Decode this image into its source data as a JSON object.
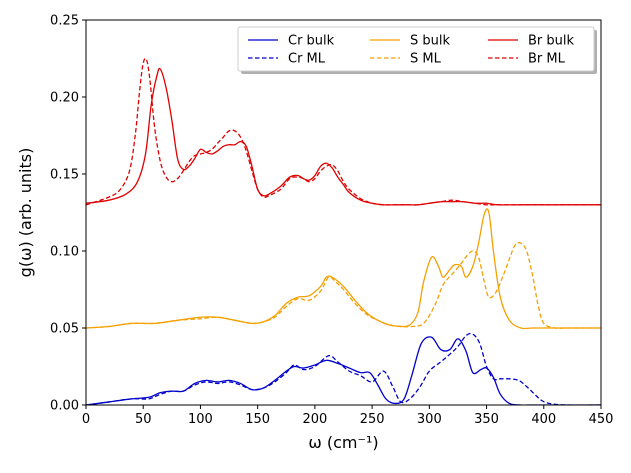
{
  "chart_data": {
    "type": "line",
    "title": "",
    "xlabel": "ω (cm⁻¹)",
    "ylabel": "g(ω) (arb. units)",
    "xlim": [
      0,
      450
    ],
    "ylim": [
      0,
      0.25
    ],
    "grid": false,
    "legend_position": "top-right",
    "x_ticks": [
      0,
      50,
      100,
      150,
      200,
      250,
      300,
      350,
      400,
      450
    ],
    "x_tick_labels": [
      "0",
      "50",
      "100",
      "150",
      "200",
      "250",
      "300",
      "350",
      "400",
      "450"
    ],
    "y_ticks": [
      0,
      0.05,
      0.1,
      0.15,
      0.2,
      0.25
    ],
    "y_tick_labels": [
      "0.00",
      "0.05",
      "0.10",
      "0.15",
      "0.20",
      "0.25"
    ],
    "series": [
      {
        "name": "Cr bulk",
        "color": "#0000cc",
        "style": "solid",
        "x": [
          0,
          20,
          40,
          55,
          65,
          75,
          85,
          95,
          105,
          115,
          125,
          135,
          145,
          155,
          165,
          175,
          182,
          190,
          200,
          210,
          220,
          230,
          240,
          248,
          255,
          262,
          270,
          278,
          285,
          293,
          302,
          310,
          318,
          325,
          332,
          338,
          345,
          350,
          356,
          362,
          370,
          380,
          390,
          400,
          420,
          450
        ],
        "y": [
          0,
          0.002,
          0.004,
          0.005,
          0.008,
          0.009,
          0.009,
          0.014,
          0.016,
          0.015,
          0.016,
          0.014,
          0.01,
          0.011,
          0.016,
          0.022,
          0.025,
          0.024,
          0.026,
          0.029,
          0.027,
          0.024,
          0.021,
          0.021,
          0.013,
          0.004,
          0.001,
          0.004,
          0.02,
          0.04,
          0.044,
          0.036,
          0.036,
          0.043,
          0.035,
          0.021,
          0.023,
          0.024,
          0.018,
          0.007,
          0.001,
          0,
          0,
          0,
          0,
          0
        ]
      },
      {
        "name": "Cr ML",
        "color": "#0000cc",
        "style": "dashed",
        "x": [
          0,
          20,
          40,
          55,
          65,
          75,
          85,
          95,
          105,
          115,
          125,
          135,
          145,
          155,
          165,
          175,
          182,
          190,
          200,
          212,
          220,
          230,
          240,
          250,
          260,
          268,
          275,
          283,
          292,
          300,
          310,
          318,
          325,
          332,
          338,
          344,
          350,
          356,
          362,
          370,
          378,
          385,
          392,
          398,
          405,
          420,
          450
        ],
        "y": [
          0,
          0.002,
          0.004,
          0.004,
          0.007,
          0.009,
          0.009,
          0.013,
          0.015,
          0.014,
          0.015,
          0.013,
          0.01,
          0.011,
          0.015,
          0.021,
          0.026,
          0.023,
          0.025,
          0.032,
          0.028,
          0.022,
          0.019,
          0.015,
          0.022,
          0.012,
          0.002,
          0.004,
          0.012,
          0.022,
          0.028,
          0.033,
          0.038,
          0.045,
          0.046,
          0.04,
          0.025,
          0.017,
          0.017,
          0.017,
          0.016,
          0.012,
          0.007,
          0.003,
          0.001,
          0,
          0
        ]
      },
      {
        "name": "S bulk",
        "color": "#f5a000",
        "style": "solid",
        "x": [
          0,
          20,
          40,
          60,
          80,
          100,
          115,
          130,
          145,
          155,
          165,
          175,
          185,
          195,
          205,
          210,
          215,
          225,
          235,
          245,
          255,
          265,
          275,
          283,
          290,
          295,
          302,
          308,
          312,
          318,
          322,
          328,
          332,
          338,
          343,
          348,
          352,
          356,
          362,
          370,
          380,
          390,
          400,
          420,
          450
        ],
        "y": [
          0.05,
          0.051,
          0.053,
          0.053,
          0.055,
          0.057,
          0.057,
          0.055,
          0.053,
          0.054,
          0.058,
          0.066,
          0.07,
          0.071,
          0.077,
          0.083,
          0.083,
          0.077,
          0.068,
          0.06,
          0.055,
          0.052,
          0.051,
          0.052,
          0.06,
          0.08,
          0.096,
          0.09,
          0.083,
          0.088,
          0.091,
          0.09,
          0.083,
          0.09,
          0.105,
          0.124,
          0.125,
          0.1,
          0.07,
          0.055,
          0.05,
          0.05,
          0.05,
          0.05,
          0.05
        ]
      },
      {
        "name": "S ML",
        "color": "#f5a000",
        "style": "dashed",
        "x": [
          0,
          20,
          40,
          60,
          80,
          100,
          115,
          130,
          145,
          155,
          165,
          175,
          185,
          195,
          205,
          212,
          218,
          225,
          235,
          245,
          255,
          265,
          275,
          285,
          295,
          305,
          312,
          320,
          328,
          333,
          338,
          343,
          348,
          352,
          358,
          364,
          370,
          375,
          380,
          385,
          390,
          395,
          400,
          410,
          420,
          450
        ],
        "y": [
          0.05,
          0.051,
          0.053,
          0.053,
          0.055,
          0.056,
          0.057,
          0.055,
          0.053,
          0.054,
          0.057,
          0.064,
          0.069,
          0.068,
          0.074,
          0.083,
          0.08,
          0.075,
          0.066,
          0.059,
          0.055,
          0.052,
          0.051,
          0.051,
          0.053,
          0.065,
          0.078,
          0.085,
          0.092,
          0.097,
          0.1,
          0.096,
          0.08,
          0.07,
          0.073,
          0.083,
          0.095,
          0.104,
          0.105,
          0.1,
          0.085,
          0.065,
          0.053,
          0.05,
          0.05,
          0.05
        ]
      },
      {
        "name": "Br bulk",
        "color": "#e00000",
        "style": "solid",
        "x": [
          0,
          20,
          35,
          45,
          52,
          57,
          62,
          65,
          70,
          75,
          80,
          85,
          90,
          95,
          100,
          105,
          110,
          115,
          120,
          125,
          130,
          135,
          140,
          145,
          150,
          155,
          160,
          170,
          178,
          185,
          190,
          195,
          200,
          205,
          210,
          215,
          220,
          225,
          230,
          240,
          250,
          260,
          270,
          280,
          290,
          300,
          310,
          320,
          330,
          340,
          350,
          360,
          380,
          400,
          420,
          450
        ],
        "y": [
          0.131,
          0.133,
          0.137,
          0.145,
          0.163,
          0.195,
          0.214,
          0.218,
          0.206,
          0.185,
          0.16,
          0.153,
          0.155,
          0.16,
          0.166,
          0.164,
          0.163,
          0.165,
          0.168,
          0.169,
          0.169,
          0.171,
          0.168,
          0.155,
          0.14,
          0.136,
          0.137,
          0.142,
          0.148,
          0.149,
          0.147,
          0.146,
          0.149,
          0.155,
          0.157,
          0.154,
          0.148,
          0.143,
          0.138,
          0.133,
          0.131,
          0.13,
          0.13,
          0.13,
          0.13,
          0.131,
          0.132,
          0.132,
          0.132,
          0.131,
          0.131,
          0.13,
          0.13,
          0.13,
          0.13,
          0.13
        ]
      },
      {
        "name": "Br ML",
        "color": "#e00000",
        "style": "dashed",
        "x": [
          0,
          20,
          30,
          38,
          43,
          47,
          50,
          53,
          56,
          60,
          65,
          70,
          75,
          80,
          85,
          90,
          95,
          100,
          105,
          110,
          115,
          120,
          125,
          130,
          135,
          140,
          145,
          150,
          155,
          160,
          170,
          178,
          185,
          190,
          195,
          200,
          205,
          210,
          215,
          220,
          225,
          230,
          240,
          250,
          260,
          270,
          280,
          290,
          300,
          310,
          320,
          330,
          340,
          350,
          360,
          380,
          400,
          420,
          450
        ],
        "y": [
          0.13,
          0.135,
          0.14,
          0.152,
          0.175,
          0.205,
          0.222,
          0.224,
          0.21,
          0.18,
          0.158,
          0.148,
          0.145,
          0.147,
          0.152,
          0.158,
          0.162,
          0.163,
          0.164,
          0.166,
          0.17,
          0.174,
          0.178,
          0.178,
          0.174,
          0.165,
          0.152,
          0.14,
          0.135,
          0.136,
          0.14,
          0.147,
          0.148,
          0.147,
          0.145,
          0.147,
          0.152,
          0.155,
          0.156,
          0.152,
          0.145,
          0.14,
          0.134,
          0.131,
          0.13,
          0.13,
          0.13,
          0.13,
          0.131,
          0.132,
          0.133,
          0.132,
          0.131,
          0.13,
          0.13,
          0.13,
          0.13,
          0.13,
          0.13
        ]
      }
    ]
  }
}
